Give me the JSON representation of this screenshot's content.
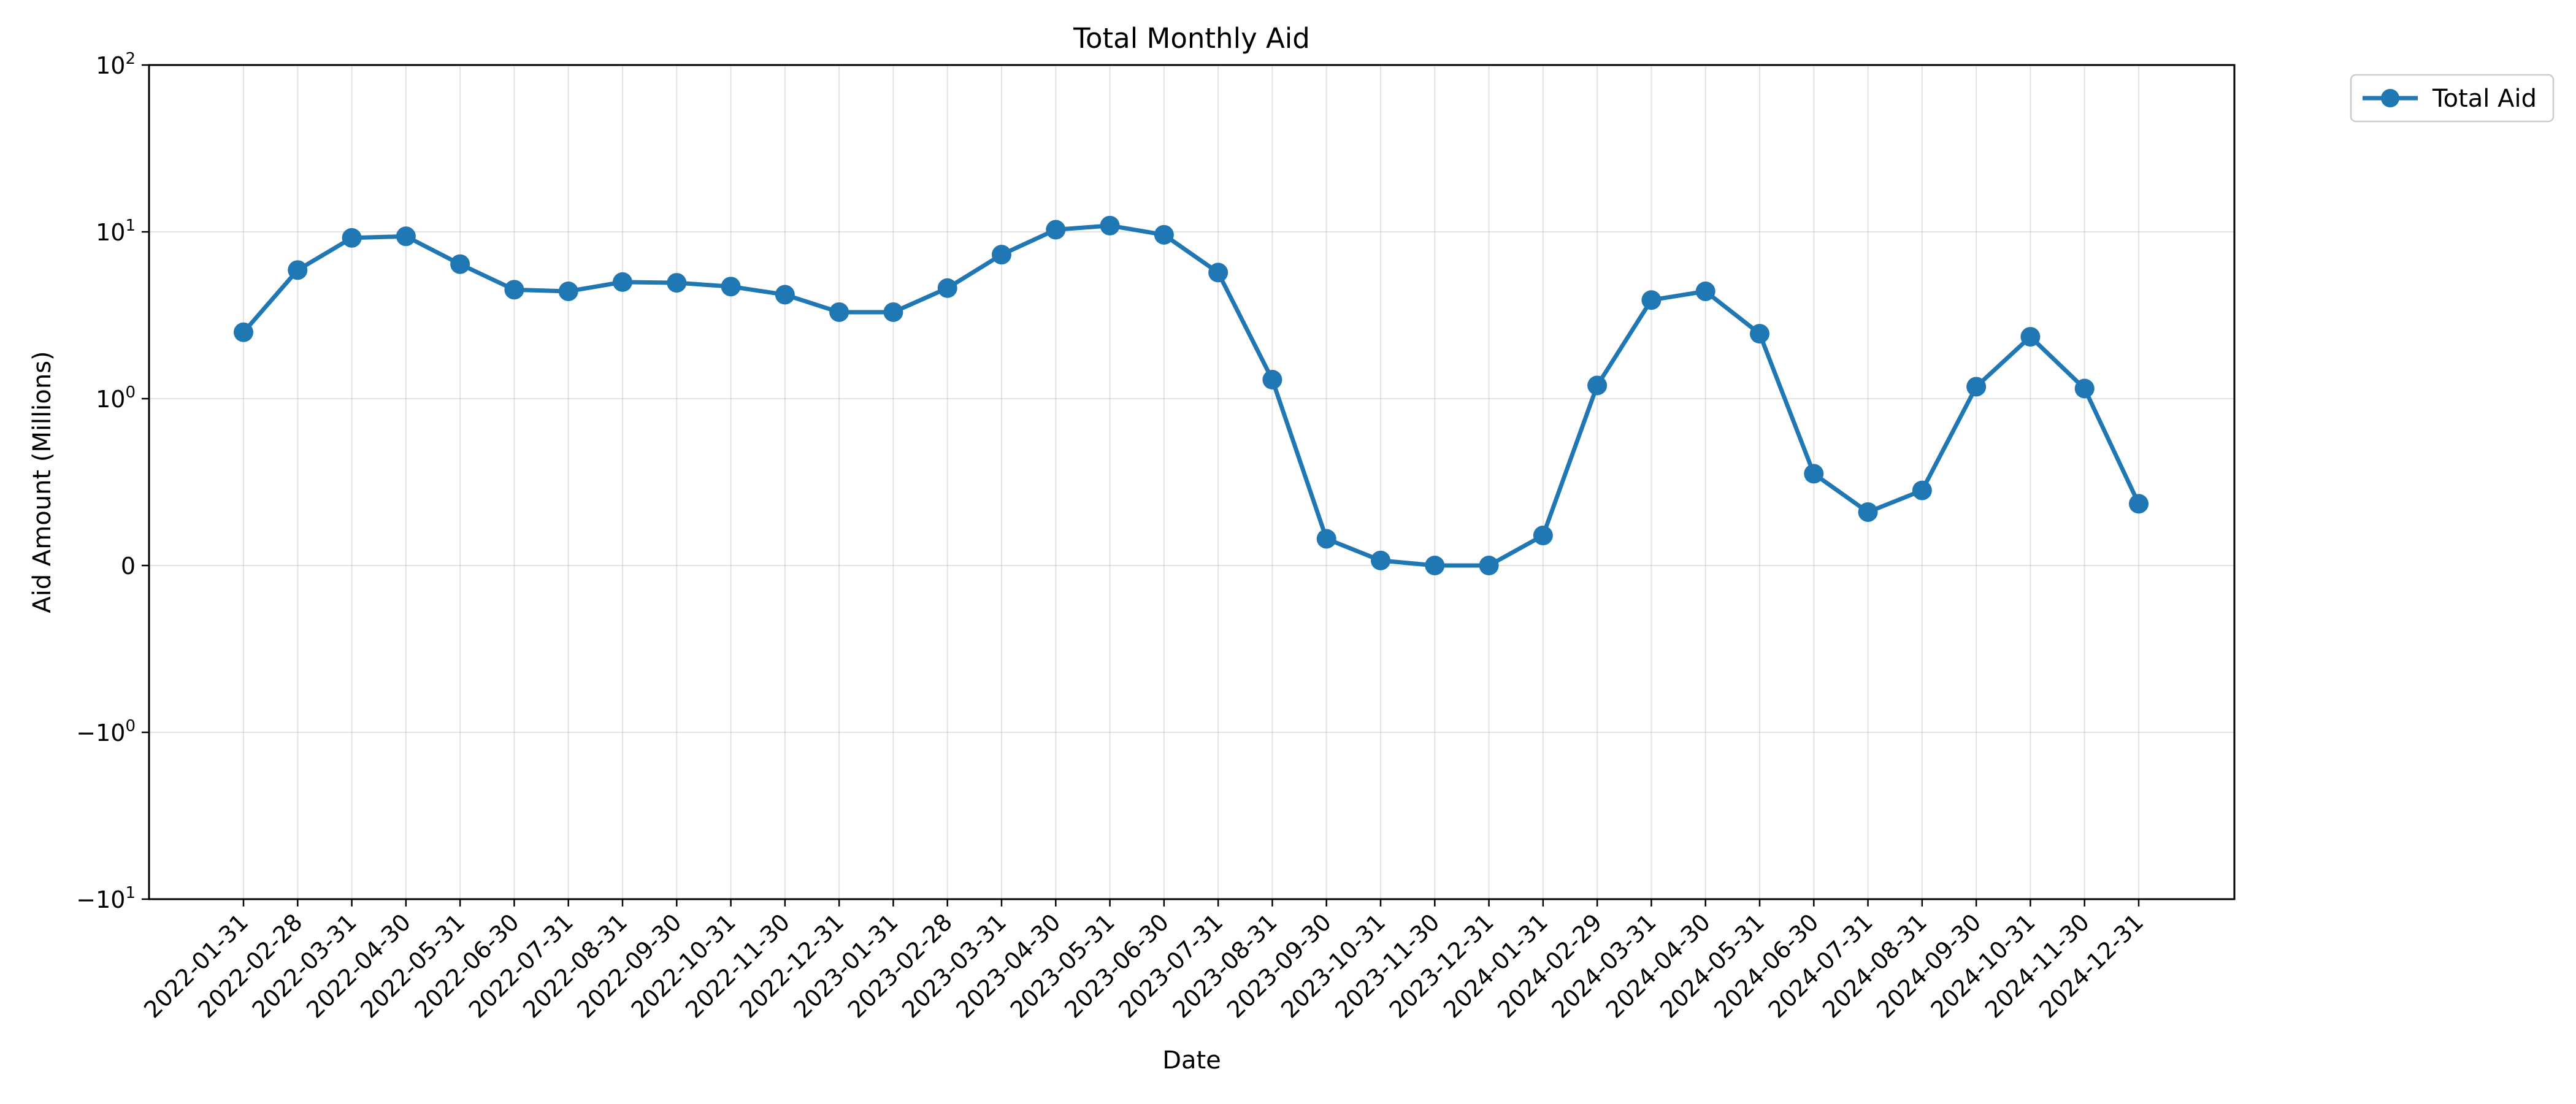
{
  "chart_data": {
    "type": "line",
    "title": "Total Monthly Aid",
    "xlabel": "Date",
    "ylabel": "Aid Amount (Millions)",
    "yscale": "symlog",
    "ylim": [
      -10,
      100
    ],
    "y_ticks": [
      {
        "value": -10,
        "base": "−10",
        "exp": "1"
      },
      {
        "value": -1,
        "base": "−10",
        "exp": "0"
      },
      {
        "value": 0,
        "base": "0",
        "exp": ""
      },
      {
        "value": 1,
        "base": "10",
        "exp": "0"
      },
      {
        "value": 10,
        "base": "10",
        "exp": "1"
      },
      {
        "value": 100,
        "base": "10",
        "exp": "2"
      }
    ],
    "grid": true,
    "legend_placement": "outside-top-right",
    "x": [
      "2022-01-31",
      "2022-02-28",
      "2022-03-31",
      "2022-04-30",
      "2022-05-31",
      "2022-06-30",
      "2022-07-31",
      "2022-08-31",
      "2022-09-30",
      "2022-10-31",
      "2022-11-30",
      "2022-12-31",
      "2023-01-31",
      "2023-02-28",
      "2023-03-31",
      "2023-04-30",
      "2023-05-31",
      "2023-06-30",
      "2023-07-31",
      "2023-08-31",
      "2023-09-30",
      "2023-10-31",
      "2023-11-30",
      "2023-12-31",
      "2024-01-31",
      "2024-02-29",
      "2024-03-31",
      "2024-04-30",
      "2024-05-31",
      "2024-06-30",
      "2024-07-31",
      "2024-08-31",
      "2024-09-30",
      "2024-10-31",
      "2024-11-30",
      "2024-12-31"
    ],
    "series": [
      {
        "name": "Total Aid",
        "color": "#1f77b4",
        "marker": "circle",
        "values": [
          2.5,
          5.9,
          9.2,
          9.4,
          6.4,
          4.5,
          4.4,
          5.0,
          4.95,
          4.7,
          4.2,
          3.3,
          3.3,
          4.6,
          7.3,
          10.3,
          10.9,
          9.6,
          5.7,
          1.3,
          0.16,
          0.03,
          0.0,
          0.0,
          0.18,
          1.2,
          3.9,
          4.4,
          2.45,
          0.55,
          0.32,
          0.45,
          1.18,
          2.35,
          1.15,
          0.37
        ]
      }
    ]
  }
}
